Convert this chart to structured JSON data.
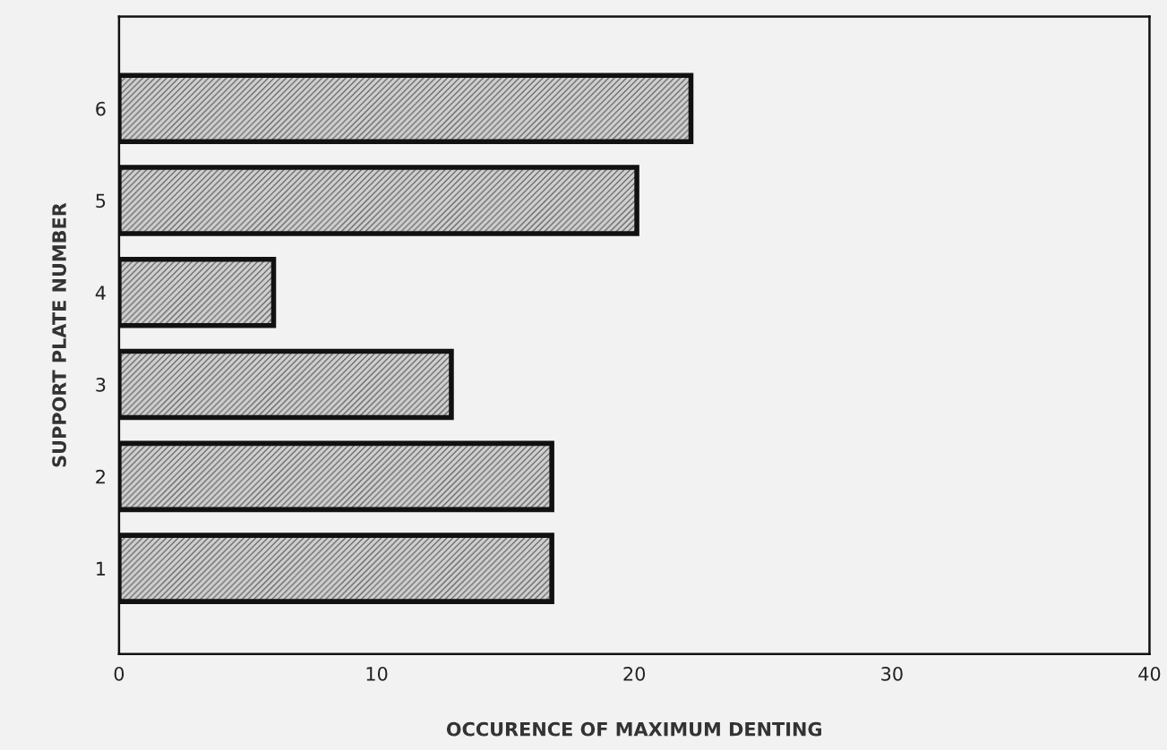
{
  "chart_data": {
    "type": "bar",
    "orientation": "horizontal",
    "xlabel": "OCCURENCE OF MAXIMUM DENTING",
    "ylabel": "SUPPORT PLATE NUMBER",
    "categories": [
      "6",
      "5",
      "4",
      "3",
      "2",
      "1"
    ],
    "values": [
      22.2,
      20.1,
      6.0,
      12.9,
      16.8,
      16.8
    ],
    "color": "#cfcfcf",
    "xlim": [
      0,
      40
    ],
    "xticks": [
      0,
      10,
      20,
      30,
      40
    ],
    "grid": false
  }
}
